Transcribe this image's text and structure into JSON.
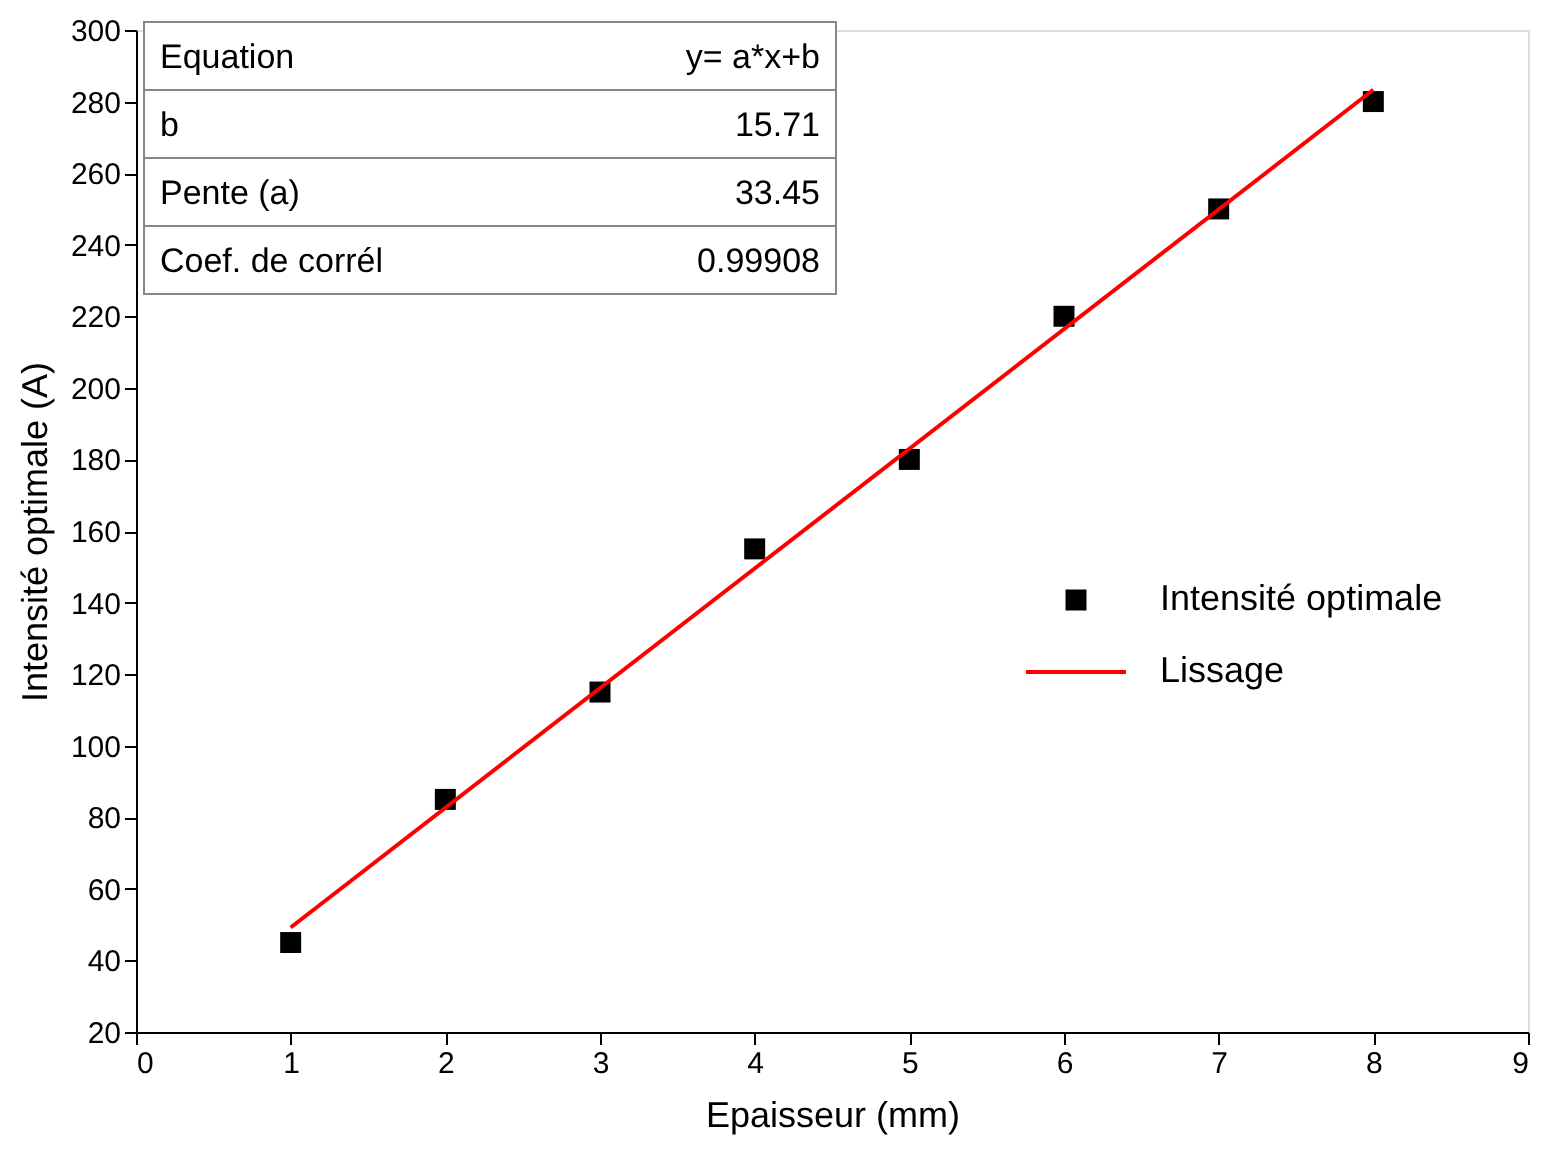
{
  "chart_data": {
    "type": "scatter",
    "xlabel": "Epaisseur (mm)",
    "ylabel": "Intensité optimale (A)",
    "xlim": [
      0,
      9
    ],
    "xticks": [
      0,
      1,
      2,
      3,
      4,
      5,
      6,
      7,
      8,
      9
    ],
    "ylim": [
      20,
      300
    ],
    "yticks": [
      20,
      40,
      60,
      80,
      100,
      120,
      140,
      160,
      180,
      200,
      220,
      240,
      260,
      280,
      300
    ],
    "grid": false,
    "legend": "right",
    "series": [
      {
        "name": "Intensité optimale",
        "marker": "square",
        "color": "#000000",
        "x": [
          1,
          2,
          3,
          4,
          5,
          6,
          7,
          8
        ],
        "values": [
          45,
          85,
          115,
          155,
          180,
          220,
          250,
          280
        ]
      },
      {
        "name": "Lissage",
        "type": "line",
        "marker": "none",
        "color": "#ff0000",
        "x": [
          1,
          8
        ],
        "values": [
          49.2,
          283.3
        ],
        "line_style": "solid"
      }
    ],
    "annotations": [
      "Equation",
      "y= a*x+b",
      "b",
      "15.71",
      "Pente (a)",
      "33.45",
      "Coef. de corrél",
      "0.99908"
    ]
  }
}
